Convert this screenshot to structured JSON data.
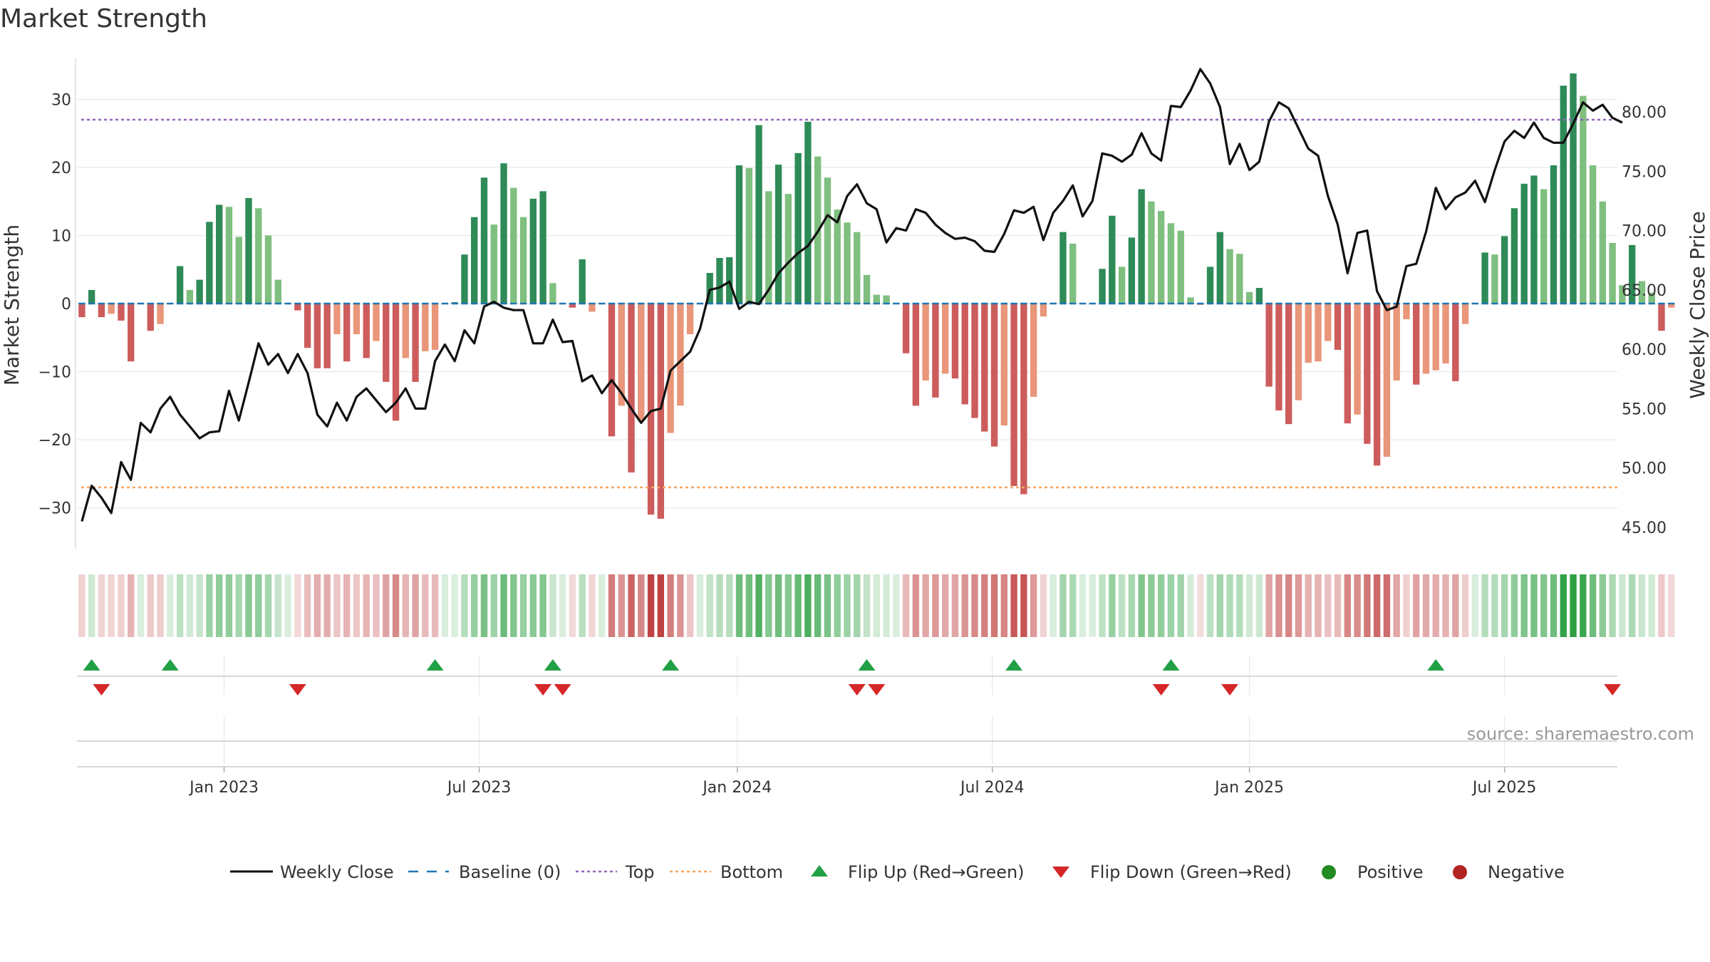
{
  "chart_data": {
    "type": "bar+line",
    "title": "Market Strength",
    "ylabel_left": "Market Strength",
    "ylabel_right": "Weekly Close Price",
    "ylim_left": [
      -36,
      36
    ],
    "ylim_right": [
      43.2,
      84.5
    ],
    "yticks_left": [
      "30",
      "20",
      "10",
      "0",
      "−10",
      "−20",
      "−30"
    ],
    "yticks_left_values": [
      30,
      20,
      10,
      0,
      -10,
      -20,
      -30
    ],
    "yticks_right": [
      "80.00",
      "75.00",
      "70.00",
      "65.00",
      "60.00",
      "55.00",
      "50.00",
      "45.00"
    ],
    "yticks_right_values": [
      80,
      75,
      70,
      65,
      60,
      55,
      50,
      45
    ],
    "xticks": [
      "Jan 2023",
      "Jul 2023",
      "Jan 2024",
      "Jul 2024",
      "Jan 2025",
      "Jul 2025"
    ],
    "xticks_week_index": [
      14.5,
      40.5,
      66.8,
      92.8,
      119,
      145
    ],
    "n_weeks": 157,
    "top_line": 27,
    "bottom_line": -27,
    "strength": [
      -2,
      2,
      -2,
      -1.5,
      -2.5,
      -8.5,
      0,
      -4,
      -3,
      0,
      5.5,
      2,
      3.5,
      12,
      14.5,
      14.2,
      9.8,
      15.5,
      14,
      10,
      3.5,
      0,
      -1,
      -6.5,
      -9.5,
      -9.5,
      -4.5,
      -8.5,
      -4.5,
      -8,
      -5.5,
      -11.5,
      -17.2,
      -8,
      -11.5,
      -7,
      -6.8,
      0,
      0.2,
      7.2,
      12.7,
      18.5,
      11.6,
      20.6,
      17,
      12.7,
      15.4,
      16.5,
      3,
      0,
      -0.6,
      6.5,
      -1.2,
      0,
      -19.5,
      -15,
      -24.8,
      -17.2,
      -31,
      -31.6,
      -19,
      -15,
      -4.5,
      0,
      4.5,
      6.7,
      6.8,
      20.3,
      19.9,
      26.2,
      16.5,
      20.4,
      16.1,
      22.1,
      26.7,
      21.6,
      18.5,
      13.8,
      11.9,
      10.5,
      4.2,
      1.3,
      1.2,
      0,
      -7.3,
      -15,
      -11.3,
      -13.8,
      -10.3,
      -11,
      -14.8,
      -16.8,
      -18.8,
      -21,
      -17.9,
      -26.8,
      -28,
      -13.7,
      -1.9,
      0,
      10.5,
      8.8,
      0,
      0,
      5.1,
      12.9,
      5.4,
      9.7,
      16.8,
      15,
      13.6,
      11.8,
      10.7,
      0.9,
      -0.2,
      5.4,
      10.5,
      8,
      7.3,
      1.7,
      2.3,
      -12.2,
      -15.7,
      -17.7,
      -14.2,
      -8.7,
      -8.5,
      -5.5,
      -6.8,
      -17.6,
      -16.3,
      -20.6,
      -23.8,
      -22.5,
      -11.3,
      -2.3,
      -11.9,
      -10.3,
      -9.8,
      -8.8,
      -11.4,
      -3,
      0,
      7.5,
      7.2,
      9.9,
      14,
      17.6,
      18.8,
      16.8,
      20.3,
      32,
      33.8,
      30.5,
      20.3,
      15,
      8.9,
      2.7,
      8.6,
      3.3,
      1.6,
      -4,
      -0.6
    ],
    "weekly_close": [
      45.5,
      48.5,
      47.5,
      46.2,
      50.5,
      49,
      53.8,
      53,
      55,
      56,
      54.5,
      53.5,
      52.5,
      53,
      53.1,
      56.5,
      54,
      57.2,
      60.5,
      58.7,
      59.6,
      58,
      59.6,
      58,
      54.5,
      53.5,
      55.5,
      54,
      56,
      56.7,
      55.7,
      54.7,
      55.5,
      56.7,
      55,
      55,
      59,
      60.4,
      59,
      61.6,
      60.5,
      63.6,
      64,
      63.5,
      63.3,
      63.3,
      60.5,
      60.5,
      62.5,
      60.6,
      60.7,
      57.3,
      57.8,
      56.3,
      57.4,
      56.3,
      55,
      53.8,
      54.8,
      55,
      58.2,
      59,
      59.8,
      61.7,
      65,
      65.2,
      65.7,
      63.4,
      64,
      63.8,
      65,
      66.4,
      67.3,
      68.1,
      68.7,
      69.9,
      71.3,
      70.7,
      72.9,
      73.9,
      72.3,
      71.8,
      69,
      70.2,
      70,
      71.8,
      71.5,
      70.5,
      69.8,
      69.3,
      69.4,
      69.1,
      68.3,
      68.2,
      69.7,
      71.7,
      71.5,
      72,
      69.2,
      71.5,
      72.5,
      73.8,
      71.2,
      72.5,
      76.5,
      76.3,
      75.8,
      76.4,
      78.2,
      76.5,
      75.9,
      80.5,
      80.4,
      81.8,
      83.6,
      82.4,
      80.4,
      75.6,
      77.3,
      75.1,
      75.8,
      79.2,
      80.8,
      80.3,
      78.6,
      76.9,
      76.3,
      72.9,
      70.5,
      66.4,
      69.8,
      70,
      64.9,
      63.3,
      63.6,
      67,
      67.2,
      69.9,
      73.6,
      71.8,
      72.8,
      73.2,
      74.2,
      72.4,
      75.1,
      77.5,
      78.4,
      77.8,
      79.1,
      77.8,
      77.4,
      77.4,
      79,
      80.8,
      80.1,
      80.6,
      79.5,
      79.1
    ],
    "flip_up_weeks": [
      1,
      9,
      36,
      48,
      60,
      80,
      95,
      111,
      138
    ],
    "flip_down_weeks": [
      2,
      22,
      47,
      49,
      79,
      81,
      110,
      117,
      156
    ],
    "legend": [
      "Weekly Close",
      "Baseline (0)",
      "Top",
      "Bottom",
      "Flip Up (Red→Green)",
      "Flip Down (Green→Red)",
      "Positive",
      "Negative"
    ],
    "source": "source: sharemaestro.com",
    "colors": {
      "pos_strong": "#2e8b57",
      "pos_light": "#7fbf7f",
      "neg_strong": "#cd5c5c",
      "neg_light": "#e9967a",
      "line": "#111111",
      "baseline": "#1f77b4",
      "top": "#9467bd",
      "bottom": "#f4a460",
      "flip_up": "#22a046",
      "flip_down": "#d62728",
      "positive_dot": "#228b22",
      "negative_dot": "#b22222"
    }
  }
}
